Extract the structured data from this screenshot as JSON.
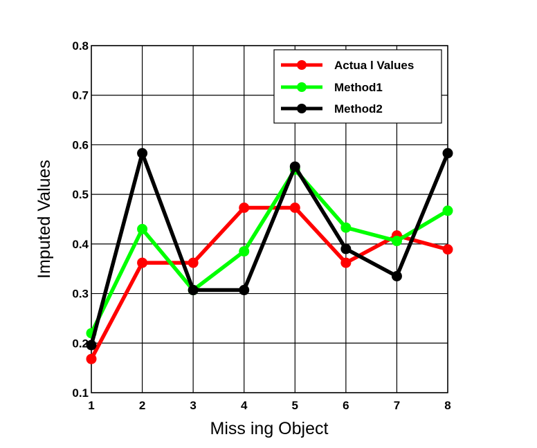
{
  "chart_data": {
    "type": "line",
    "title": "",
    "xlabel": "Miss ing Object",
    "ylabel": "Imputed Values",
    "x": [
      1,
      2,
      3,
      4,
      5,
      6,
      7,
      8
    ],
    "xlim": [
      1,
      8
    ],
    "ylim": [
      0.1,
      0.8
    ],
    "x_ticks": [
      "1",
      "2",
      "3",
      "4",
      "5",
      "6",
      "7",
      "8"
    ],
    "y_ticks": [
      "0.1",
      "0.2",
      "0.3",
      "0.4",
      "0.5",
      "0.6",
      "0.7",
      "0.8"
    ],
    "grid": true,
    "legend_position": "top-right",
    "series": [
      {
        "name": "Actua l Values",
        "color": "#ff0000",
        "values": [
          0.168,
          0.362,
          0.362,
          0.473,
          0.473,
          0.362,
          0.417,
          0.389
        ]
      },
      {
        "name": "Method1",
        "color": "#00ff00",
        "values": [
          0.22,
          0.43,
          0.307,
          0.385,
          0.55,
          0.433,
          0.406,
          0.467
        ]
      },
      {
        "name": "Method2",
        "color": "#000000",
        "values": [
          0.196,
          0.583,
          0.307,
          0.307,
          0.556,
          0.39,
          0.335,
          0.583
        ]
      }
    ]
  }
}
